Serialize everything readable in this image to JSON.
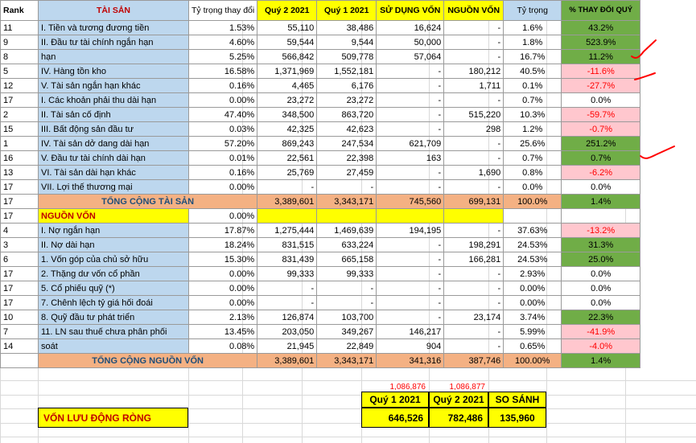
{
  "header": {
    "rank": "Rank",
    "asset": "TÀI SẢN",
    "change_weight": "Tỷ trọng thay đổi",
    "q2": "Quý 2 2021",
    "q1": "Quý 1 2021",
    "use": "SỬ DỤNG VỐN",
    "source": "NGUỒN VỐN",
    "weight": "Tỷ trọng",
    "pct_change": "% THAY ĐỔI QUÝ"
  },
  "rows": [
    {
      "rank": "11",
      "name": "I. Tiền và  tương đương tiền",
      "cw": "1.53%",
      "q2": "55,110",
      "q1": "38,486",
      "use": "16,624",
      "src": "-",
      "w": "1.6%",
      "pct": "43.2%",
      "pc": "green"
    },
    {
      "rank": "9",
      "name": "II. Đầu tư tài chính ngắn hạn",
      "cw": "4.60%",
      "q2": "59,544",
      "q1": "9,544",
      "use": "50,000",
      "src": "-",
      "w": "1.8%",
      "pct": "523.9%",
      "pc": "green"
    },
    {
      "rank": "8",
      "name": "hạn",
      "cw": "5.25%",
      "q2": "566,842",
      "q1": "509,778",
      "use": "57,064",
      "src": "-",
      "w": "16.7%",
      "pct": "11.2%",
      "pc": "green"
    },
    {
      "rank": "5",
      "name": "IV. Hàng tồn kho",
      "cw": "16.58%",
      "q2": "1,371,969",
      "q1": "1,552,181",
      "use": "-",
      "src": "180,212",
      "w": "40.5%",
      "pct": "-11.6%",
      "pc": "pink"
    },
    {
      "rank": "12",
      "name": "V. Tài sản ngắn hạn khác",
      "cw": "0.16%",
      "q2": "4,465",
      "q1": "6,176",
      "use": "-",
      "src": "1,711",
      "w": "0.1%",
      "pct": "-27.7%",
      "pc": "pink"
    },
    {
      "rank": "17",
      "name": "I. Các khoản phải thu dài hạn",
      "cw": "0.00%",
      "q2": "23,272",
      "q1": "23,272",
      "use": "-",
      "src": "-",
      "w": "0.7%",
      "pct": "0.0%",
      "pc": "white"
    },
    {
      "rank": "2",
      "name": "II. Tài sản cố định",
      "cw": "47.40%",
      "q2": "348,500",
      "q1": "863,720",
      "use": "-",
      "src": "515,220",
      "w": "10.3%",
      "pct": "-59.7%",
      "pc": "pink"
    },
    {
      "rank": "15",
      "name": "III. Bất động sản đầu tư",
      "cw": "0.03%",
      "q2": "42,325",
      "q1": "42,623",
      "use": "-",
      "src": "298",
      "w": "1.2%",
      "pct": "-0.7%",
      "pc": "pink"
    },
    {
      "rank": "1",
      "name": "IV. Tài sản dở dang dài hạn",
      "cw": "57.20%",
      "q2": "869,243",
      "q1": "247,534",
      "use": "621,709",
      "src": "-",
      "w": "25.6%",
      "pct": "251.2%",
      "pc": "green"
    },
    {
      "rank": "16",
      "name": "V. Đầu tư tài chính dài hạn",
      "cw": "0.01%",
      "q2": "22,561",
      "q1": "22,398",
      "use": "163",
      "src": "-",
      "w": "0.7%",
      "pct": "0.7%",
      "pc": "green"
    },
    {
      "rank": "13",
      "name": "VI. Tài sản dài hạn khác",
      "cw": "0.16%",
      "q2": "25,769",
      "q1": "27,459",
      "use": "-",
      "src": "1,690",
      "w": "0.8%",
      "pct": "-6.2%",
      "pc": "pink"
    },
    {
      "rank": "17",
      "name": "VII. Lợi thế thương mại",
      "cw": "0.00%",
      "q2": "-",
      "q1": "-",
      "use": "-",
      "src": "-",
      "w": "0.0%",
      "pct": "0.0%",
      "pc": "white"
    }
  ],
  "total_assets": {
    "rank": "17",
    "label": "TỔNG CỘNG TÀI SẢN",
    "q2": "3,389,601",
    "q1": "3,343,171",
    "use": "745,560",
    "src": "699,131",
    "w": "100.0%",
    "pct": "1.4%"
  },
  "nv_header": {
    "rank": "17",
    "label": "NGUỒN VỐN",
    "cw": "0.00%"
  },
  "rows2": [
    {
      "rank": "4",
      "name": "I. Nợ ngắn hạn",
      "cw": "17.87%",
      "q2": "1,275,444",
      "q1": "1,469,639",
      "use": "194,195",
      "src": "-",
      "w": "37.63%",
      "pct": "-13.2%",
      "pc": "pink"
    },
    {
      "rank": "3",
      "name": "II. Nợ dài hạn",
      "cw": "18.24%",
      "q2": "831,515",
      "q1": "633,224",
      "use": "-",
      "src": "198,291",
      "w": "24.53%",
      "pct": "31.3%",
      "pc": "green"
    },
    {
      "rank": "6",
      "name": "1. Vốn góp của chủ sở hữu",
      "cw": "15.30%",
      "q2": "831,439",
      "q1": "665,158",
      "use": "-",
      "src": "166,281",
      "w": "24.53%",
      "pct": "25.0%",
      "pc": "green"
    },
    {
      "rank": "17",
      "name": "2. Thặng dư vốn cổ phần",
      "cw": "0.00%",
      "q2": "99,333",
      "q1": "99,333",
      "use": "-",
      "src": "-",
      "w": "2.93%",
      "pct": "0.0%",
      "pc": "white"
    },
    {
      "rank": "17",
      "name": "5. Cổ phiếu quỹ (*)",
      "cw": "0.00%",
      "q2": "-",
      "q1": "-",
      "use": "-",
      "src": "-",
      "w": "0.00%",
      "pct": "0.0%",
      "pc": "white"
    },
    {
      "rank": "17",
      "name": "7. Chênh lệch tỷ giá hối đoái",
      "cw": "0.00%",
      "q2": "-",
      "q1": "-",
      "use": "-",
      "src": "-",
      "w": "0.00%",
      "pct": "0.0%",
      "pc": "white"
    },
    {
      "rank": "10",
      "name": "8. Quỹ đầu tư phát triển",
      "cw": "2.13%",
      "q2": "126,874",
      "q1": "103,700",
      "use": "-",
      "src": "23,174",
      "w": "3.74%",
      "pct": "22.3%",
      "pc": "green"
    },
    {
      "rank": "7",
      "name": "11. LN sau thuế chưa phân phối",
      "cw": "13.45%",
      "q2": "203,050",
      "q1": "349,267",
      "use": "146,217",
      "src": "-",
      "w": "5.99%",
      "pct": "-41.9%",
      "pc": "pink"
    },
    {
      "rank": "14",
      "name": "soát",
      "cw": "0.08%",
      "q2": "21,945",
      "q1": "22,849",
      "use": "904",
      "src": "-",
      "w": "0.65%",
      "pct": "-4.0%",
      "pc": "pink"
    }
  ],
  "total_sources": {
    "label": "TỔNG CỘNG NGUỒN VỐN",
    "q2": "3,389,601",
    "q1": "3,343,171",
    "use": "341,316",
    "src": "387,746",
    "w": "100.00%",
    "pct": "1.4%"
  },
  "red_totals": {
    "a": "1,086,876",
    "b": "1,086,877"
  },
  "summary": {
    "h_q1": "Quý 1 2021",
    "h_q2": "Quý 2 2021",
    "h_cmp": "SO SÁNH",
    "label": "VỐN LƯU ĐỘNG RÒNG",
    "v_q1": "646,526",
    "v_q2": "782,486",
    "v_cmp": "135,960"
  },
  "colors": {
    "blue": "#bdd7ee",
    "orange": "#f4b183",
    "yellow": "#ffff00",
    "green": "#70ad47",
    "pink": "#ffc7ce",
    "red": "#ff0000"
  }
}
